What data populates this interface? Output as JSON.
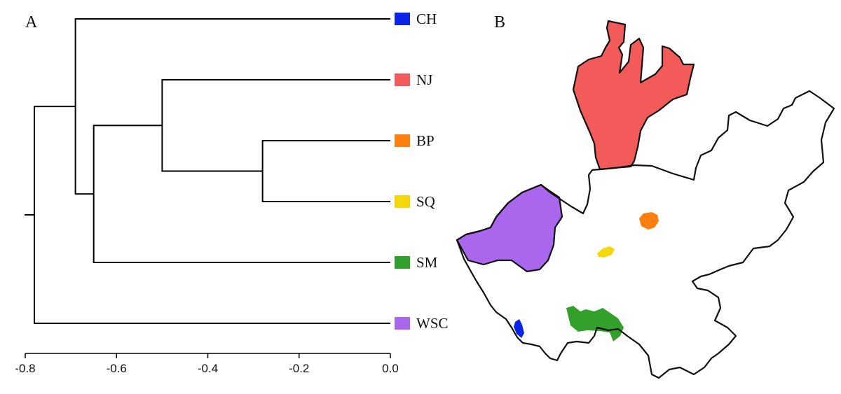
{
  "panels": {
    "a": "A",
    "b": "B"
  },
  "colors": {
    "CH": "#0a25e8",
    "NJ": "#f35a5a",
    "BP": "#ff7f0e",
    "SQ": "#f5d80a",
    "SM": "#34a02c",
    "WSC": "#ab66ee"
  },
  "chart_data": {
    "type": "dendrogram",
    "xlim": [
      -0.8,
      0.0
    ],
    "ticks": [
      -0.8,
      -0.6,
      -0.4,
      -0.2,
      0.0
    ],
    "tick_labels": [
      "-0.8",
      "-0.6",
      "-0.4",
      "-0.2",
      "0.0"
    ],
    "leaves": [
      {
        "name": "CH",
        "label": "CH"
      },
      {
        "name": "NJ",
        "label": "NJ"
      },
      {
        "name": "BP",
        "label": "BP"
      },
      {
        "name": "SQ",
        "label": "SQ"
      },
      {
        "name": "SM",
        "label": "SM"
      },
      {
        "name": "WSC",
        "label": "WSC"
      }
    ],
    "merges": [
      {
        "id": "m1",
        "children": [
          "BP",
          "SQ"
        ],
        "height": -0.28
      },
      {
        "id": "m2",
        "children": [
          "NJ",
          "m1"
        ],
        "height": -0.5
      },
      {
        "id": "m3",
        "children": [
          "m2",
          "SM"
        ],
        "height": -0.65
      },
      {
        "id": "m4",
        "children": [
          "CH",
          "m3"
        ],
        "height": -0.69
      },
      {
        "id": "m5",
        "children": [
          "m4",
          "WSC"
        ],
        "height": -0.78
      }
    ]
  },
  "map": {
    "regions": [
      "NJ",
      "WSC",
      "BP",
      "SQ",
      "SM",
      "CH"
    ]
  }
}
